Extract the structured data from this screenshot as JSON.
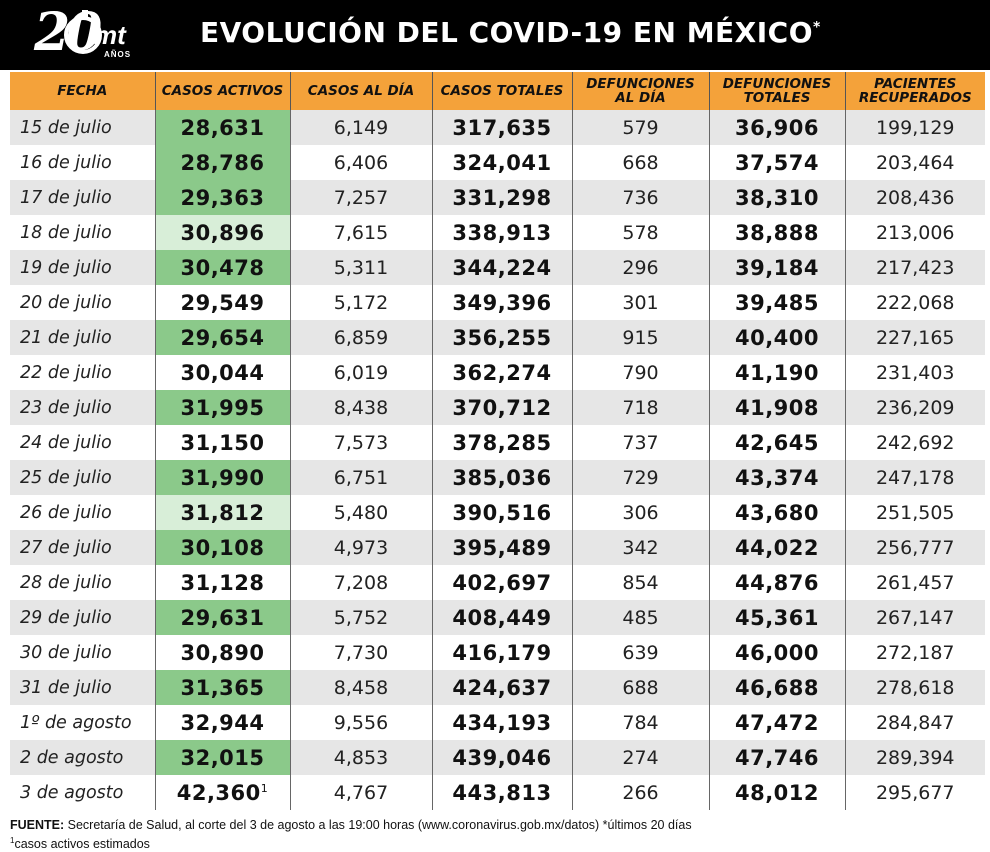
{
  "header": {
    "logo_number": "20",
    "logo_brand": "mt",
    "logo_sub": "AÑOS",
    "title": "EVOLUCIÓN DEL COVID-19 EN MÉXICO",
    "title_mark": "*"
  },
  "table": {
    "columns": [
      "FECHA",
      "CASOS ACTIVOS",
      "CASOS AL DÍA",
      "CASOS TOTALES",
      "DEFUNCIONES AL DÍA",
      "DEFUNCIONES TOTALES",
      "PACIENTES RECUPERADOS"
    ],
    "rows": [
      {
        "fecha": "15 de julio",
        "activos": "28,631",
        "al_dia": "6,149",
        "totales": "317,635",
        "def_dia": "579",
        "def_totales": "36,906",
        "recuperados": "199,129"
      },
      {
        "fecha": "16 de julio",
        "activos": "28,786",
        "al_dia": "6,406",
        "totales": "324,041",
        "def_dia": "668",
        "def_totales": "37,574",
        "recuperados": "203,464"
      },
      {
        "fecha": "17 de julio",
        "activos": "29,363",
        "al_dia": "7,257",
        "totales": "331,298",
        "def_dia": "736",
        "def_totales": "38,310",
        "recuperados": "208,436"
      },
      {
        "fecha": "18 de julio",
        "activos": "30,896",
        "al_dia": "7,615",
        "totales": "338,913",
        "def_dia": "578",
        "def_totales": "38,888",
        "recuperados": "213,006"
      },
      {
        "fecha": "19 de julio",
        "activos": "30,478",
        "al_dia": "5,311",
        "totales": "344,224",
        "def_dia": "296",
        "def_totales": "39,184",
        "recuperados": "217,423"
      },
      {
        "fecha": "20 de julio",
        "activos": "29,549",
        "al_dia": "5,172",
        "totales": "349,396",
        "def_dia": "301",
        "def_totales": "39,485",
        "recuperados": "222,068"
      },
      {
        "fecha": "21 de julio",
        "activos": "29,654",
        "al_dia": "6,859",
        "totales": "356,255",
        "def_dia": "915",
        "def_totales": "40,400",
        "recuperados": "227,165"
      },
      {
        "fecha": "22 de julio",
        "activos": "30,044",
        "al_dia": "6,019",
        "totales": "362,274",
        "def_dia": "790",
        "def_totales": "41,190",
        "recuperados": "231,403"
      },
      {
        "fecha": "23 de julio",
        "activos": "31,995",
        "al_dia": "8,438",
        "totales": "370,712",
        "def_dia": "718",
        "def_totales": "41,908",
        "recuperados": "236,209"
      },
      {
        "fecha": "24 de julio",
        "activos": "31,150",
        "al_dia": "7,573",
        "totales": "378,285",
        "def_dia": "737",
        "def_totales": "42,645",
        "recuperados": "242,692"
      },
      {
        "fecha": "25 de julio",
        "activos": "31,990",
        "al_dia": "6,751",
        "totales": "385,036",
        "def_dia": "729",
        "def_totales": "43,374",
        "recuperados": "247,178"
      },
      {
        "fecha": "26 de julio",
        "activos": "31,812",
        "al_dia": "5,480",
        "totales": "390,516",
        "def_dia": "306",
        "def_totales": "43,680",
        "recuperados": "251,505"
      },
      {
        "fecha": "27 de julio",
        "activos": "30,108",
        "al_dia": "4,973",
        "totales": "395,489",
        "def_dia": "342",
        "def_totales": "44,022",
        "recuperados": "256,777"
      },
      {
        "fecha": "28 de julio",
        "activos": "31,128",
        "al_dia": "7,208",
        "totales": "402,697",
        "def_dia": "854",
        "def_totales": "44,876",
        "recuperados": "261,457"
      },
      {
        "fecha": "29 de julio",
        "activos": "29,631",
        "al_dia": "5,752",
        "totales": "408,449",
        "def_dia": "485",
        "def_totales": "45,361",
        "recuperados": "267,147"
      },
      {
        "fecha": "30 de julio",
        "activos": "30,890",
        "al_dia": "7,730",
        "totales": "416,179",
        "def_dia": "639",
        "def_totales": "46,000",
        "recuperados": "272,187"
      },
      {
        "fecha": "31 de julio",
        "activos": "31,365",
        "al_dia": "8,458",
        "totales": "424,637",
        "def_dia": "688",
        "def_totales": "46,688",
        "recuperados": "278,618"
      },
      {
        "fecha": "1º de agosto",
        "activos": "32,944",
        "al_dia": "9,556",
        "totales": "434,193",
        "def_dia": "784",
        "def_totales": "47,472",
        "recuperados": "284,847"
      },
      {
        "fecha": "2 de agosto",
        "activos": "32,015",
        "al_dia": "4,853",
        "totales": "439,046",
        "def_dia": "274",
        "def_totales": "47,746",
        "recuperados": "289,394"
      },
      {
        "fecha": "3 de agosto",
        "activos": "42,360",
        "activos_note": "1",
        "al_dia": "4,767",
        "totales": "443,813",
        "def_dia": "266",
        "def_totales": "48,012",
        "recuperados": "295,677"
      }
    ]
  },
  "footer": {
    "source_label": "FUENTE:",
    "source_text": " Secretaría de Salud, al corte del 3 de agosto a las 19:00 horas (www.coronavirus.gob.mx/datos) *últimos 20 días",
    "note_mark": "1",
    "note_text": "casos activos estimados"
  },
  "colors": {
    "header_bg": "#000000",
    "column_header_bg": "#f4a23a",
    "active_highlight": "#8bc98a",
    "row_stripe": "#e6e6e6"
  }
}
